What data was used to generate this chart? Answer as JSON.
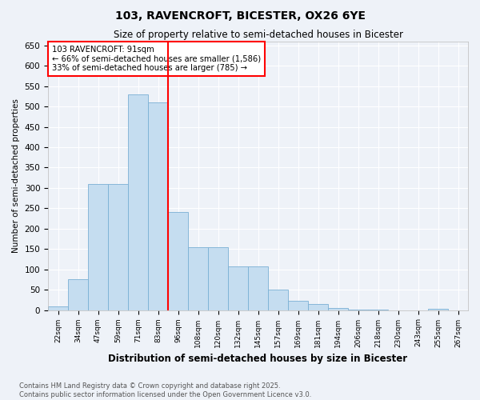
{
  "title": "103, RAVENCROFT, BICESTER, OX26 6YE",
  "subtitle": "Size of property relative to semi-detached houses in Bicester",
  "xlabel": "Distribution of semi-detached houses by size in Bicester",
  "ylabel": "Number of semi-detached properties",
  "bins": [
    "22sqm",
    "34sqm",
    "47sqm",
    "59sqm",
    "71sqm",
    "83sqm",
    "96sqm",
    "108sqm",
    "120sqm",
    "132sqm",
    "145sqm",
    "157sqm",
    "169sqm",
    "181sqm",
    "194sqm",
    "206sqm",
    "218sqm",
    "230sqm",
    "243sqm",
    "255sqm",
    "267sqm"
  ],
  "values": [
    8,
    75,
    310,
    310,
    530,
    510,
    240,
    155,
    155,
    108,
    108,
    50,
    22,
    14,
    5,
    2,
    1,
    0,
    0,
    3,
    0
  ],
  "bar_color": "#c5ddf0",
  "bar_edge_color": "#7ab0d4",
  "vline_x_right_edge_of_bin": 5,
  "vline_color": "red",
  "annotation_text": "103 RAVENCROFT: 91sqm\n← 66% of semi-detached houses are smaller (1,586)\n33% of semi-detached houses are larger (785) →",
  "annotation_box_color": "white",
  "annotation_box_edge": "red",
  "ylim": [
    0,
    660
  ],
  "yticks": [
    0,
    50,
    100,
    150,
    200,
    250,
    300,
    350,
    400,
    450,
    500,
    550,
    600,
    650
  ],
  "footer_line1": "Contains HM Land Registry data © Crown copyright and database right 2025.",
  "footer_line2": "Contains public sector information licensed under the Open Government Licence v3.0.",
  "background_color": "#eef2f8",
  "grid_color": "white"
}
